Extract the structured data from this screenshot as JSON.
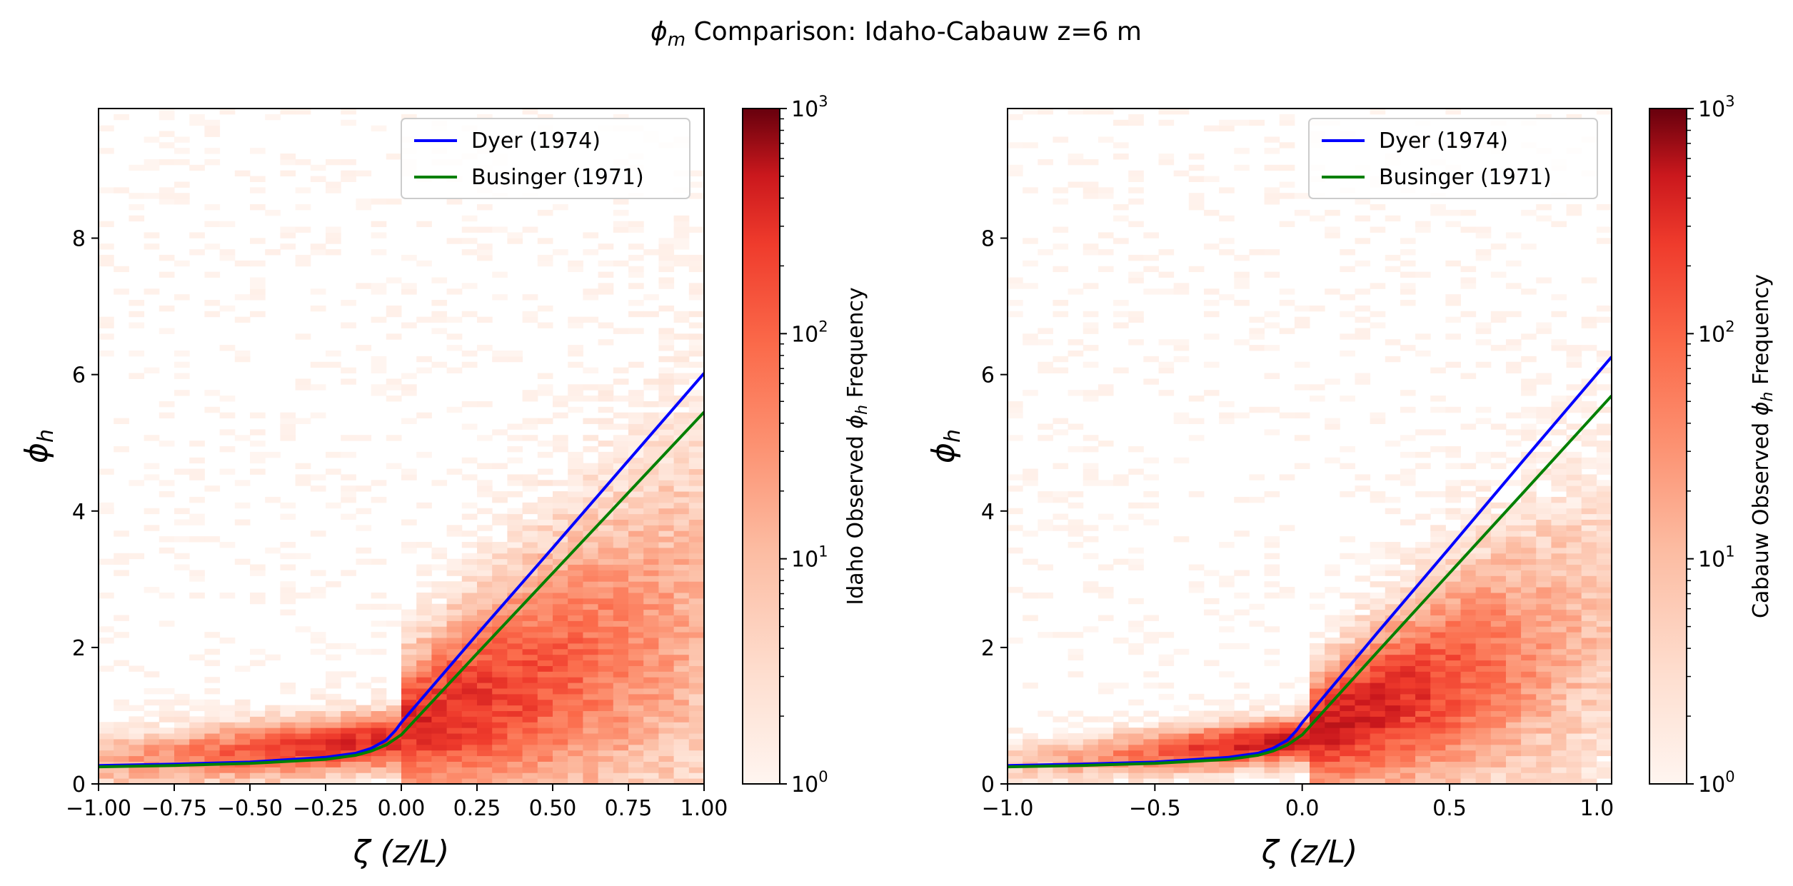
{
  "figure": {
    "title_symbol": "ϕ",
    "title_symbol_sub": "m",
    "title_rest": " Comparison: Idaho-Cabauw z=6 m"
  },
  "chart_data": [
    {
      "type": "heatmap",
      "panel": "left",
      "xlabel_symbol": "ζ",
      "xlabel_rest": " (z/L)",
      "ylabel_symbol": "ϕ",
      "ylabel_sub": "h",
      "xlim": [
        -1.0,
        1.0
      ],
      "ylim": [
        0,
        9.9
      ],
      "xticks": [
        -1.0,
        -0.75,
        -0.5,
        -0.25,
        0.0,
        0.25,
        0.5,
        0.75,
        1.0
      ],
      "xtick_labels": [
        "−1.00",
        "−0.75",
        "−0.50",
        "−0.25",
        "0.00",
        "0.25",
        "0.50",
        "0.75",
        "1.00"
      ],
      "yticks": [
        0,
        2,
        4,
        6,
        8
      ],
      "ytick_labels": [
        "0",
        "2",
        "4",
        "6",
        "8"
      ],
      "colorbar": {
        "label_prefix": "Idaho Observed ",
        "label_symbol": "ϕ",
        "label_sub": "h",
        "label_suffix": " Frequency",
        "scale": "log",
        "range": [
          1,
          1000
        ],
        "tick_exponents": [
          "0",
          "1",
          "2",
          "3"
        ],
        "colormap": "Reds"
      },
      "legend": {
        "placement": "upper right"
      },
      "series": [
        {
          "name": "Dyer (1974)",
          "color": "#0000ff",
          "x": [
            -1.0,
            -0.75,
            -0.5,
            -0.25,
            -0.15,
            -0.1,
            -0.05,
            -0.02,
            0.0,
            0.25,
            0.5,
            0.75,
            1.0
          ],
          "y": [
            0.27,
            0.29,
            0.32,
            0.39,
            0.45,
            0.52,
            0.64,
            0.78,
            0.9,
            2.19,
            3.46,
            4.74,
            6.02
          ]
        },
        {
          "name": "Businger (1971)",
          "color": "#008000",
          "x": [
            -1.0,
            -0.75,
            -0.5,
            -0.25,
            -0.15,
            -0.1,
            -0.05,
            -0.02,
            0.0,
            0.25,
            0.5,
            0.75,
            1.0
          ],
          "y": [
            0.25,
            0.27,
            0.3,
            0.36,
            0.42,
            0.48,
            0.57,
            0.66,
            0.72,
            1.91,
            3.09,
            4.27,
            5.45
          ]
        }
      ],
      "density_regions": [
        {
          "x_range": [
            -1.0,
            1.0
          ],
          "center_x": 0.0,
          "center_y": 0.8,
          "sigma_x": 0.6,
          "sigma_y": 0.9,
          "peak_log10": 2.2
        }
      ]
    },
    {
      "type": "heatmap",
      "panel": "right",
      "xlabel_symbol": "ζ",
      "xlabel_rest": " (z/L)",
      "ylabel_symbol": "ϕ",
      "ylabel_sub": "h",
      "xlim": [
        -1.0,
        1.05
      ],
      "ylim": [
        0,
        9.9
      ],
      "xticks": [
        -1.0,
        -0.5,
        0.0,
        0.5,
        1.0
      ],
      "xtick_labels": [
        "−1.0",
        "−0.5",
        "0.0",
        "0.5",
        "1.0"
      ],
      "yticks": [
        0,
        2,
        4,
        6,
        8
      ],
      "ytick_labels": [
        "0",
        "2",
        "4",
        "6",
        "8"
      ],
      "colorbar": {
        "label_prefix": "Cabauw Observed ",
        "label_symbol": "ϕ",
        "label_sub": "h",
        "label_suffix": " Frequency",
        "scale": "log",
        "range": [
          1,
          1000
        ],
        "tick_exponents": [
          "0",
          "1",
          "2",
          "3"
        ],
        "colormap": "Reds"
      },
      "legend": {
        "placement": "upper right"
      },
      "series": [
        {
          "name": "Dyer (1974)",
          "color": "#0000ff",
          "x": [
            -1.0,
            -0.75,
            -0.5,
            -0.25,
            -0.15,
            -0.1,
            -0.05,
            -0.02,
            0.0,
            0.25,
            0.5,
            0.75,
            1.05
          ],
          "y": [
            0.27,
            0.29,
            0.32,
            0.39,
            0.45,
            0.52,
            0.64,
            0.78,
            0.9,
            2.19,
            3.46,
            4.74,
            6.26
          ]
        },
        {
          "name": "Businger (1971)",
          "color": "#008000",
          "x": [
            -1.0,
            -0.75,
            -0.5,
            -0.25,
            -0.15,
            -0.1,
            -0.05,
            -0.02,
            0.0,
            0.25,
            0.5,
            0.75,
            1.05
          ],
          "y": [
            0.25,
            0.27,
            0.3,
            0.36,
            0.42,
            0.48,
            0.57,
            0.66,
            0.72,
            1.91,
            3.09,
            4.27,
            5.69
          ]
        }
      ],
      "density_regions": [
        {
          "x_range": [
            -1.0,
            1.05
          ],
          "center_x": 0.05,
          "center_y": 0.7,
          "sigma_x": 0.5,
          "sigma_y": 0.7,
          "peak_log10": 2.4
        }
      ]
    }
  ]
}
